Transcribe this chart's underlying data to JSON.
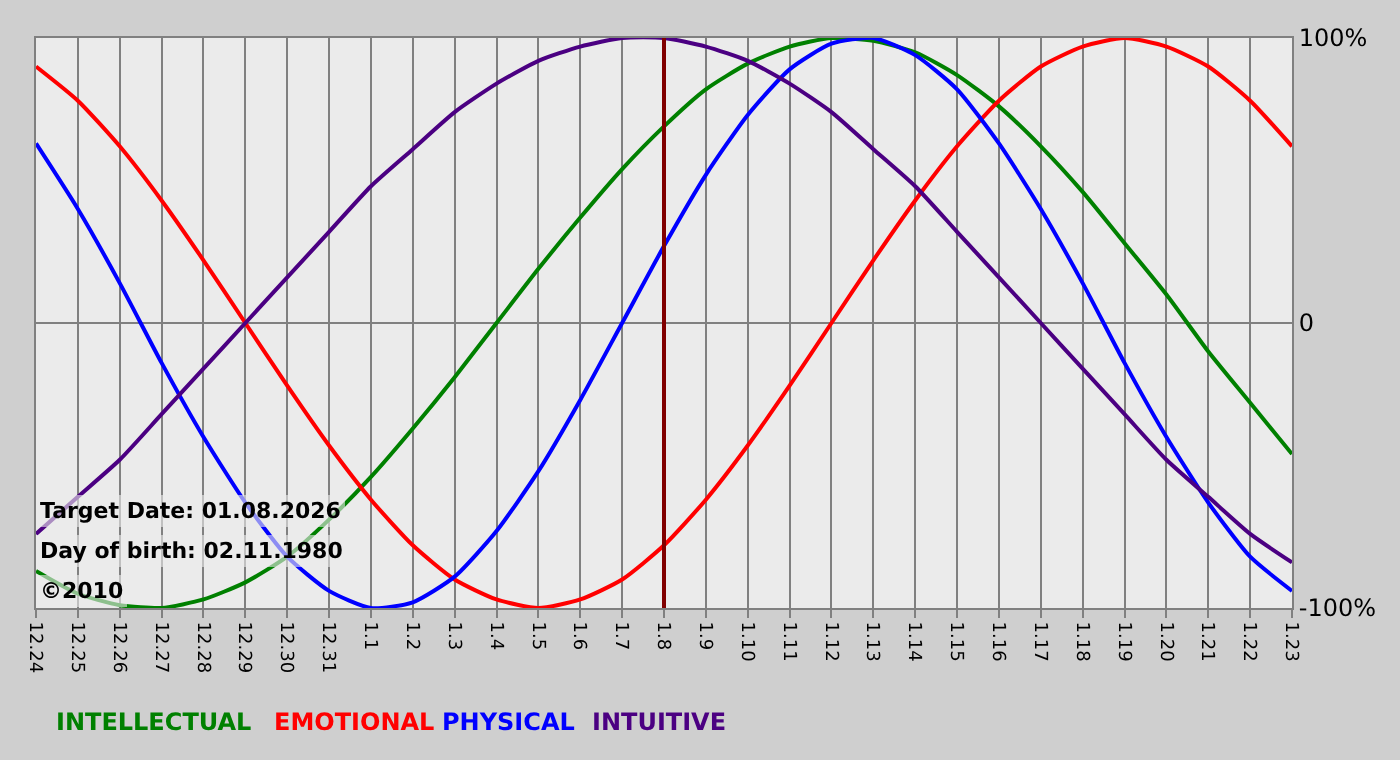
{
  "chart_data": {
    "type": "line",
    "categories": [
      "12.24",
      "12.25",
      "12.26",
      "12.27",
      "12.28",
      "12.29",
      "12.30",
      "12.31",
      "1.1",
      "1.2",
      "1.3",
      "1.4",
      "1.5",
      "1.6",
      "1.7",
      "1.8",
      "1.9",
      "1.10",
      "1.11",
      "1.12",
      "1.13",
      "1.14",
      "1.15",
      "1.16",
      "1.17",
      "1.18",
      "1.19",
      "1.20",
      "1.21",
      "1.22",
      "1.23"
    ],
    "series": [
      {
        "name": "INTELLECTUAL",
        "color": "#008000",
        "values": [
          -0.87,
          -0.95,
          -0.99,
          -1,
          -0.97,
          -0.91,
          -0.82,
          -0.69,
          -0.54,
          -0.37,
          -0.19,
          0,
          0.19,
          0.37,
          0.54,
          0.69,
          0.82,
          0.91,
          0.97,
          1,
          0.99,
          0.95,
          0.87,
          0.76,
          0.62,
          0.46,
          0.28,
          0.1,
          -0.1,
          -0.28,
          -0.46
        ]
      },
      {
        "name": "EMOTIONAL",
        "color": "#ff0000",
        "values": [
          0.9,
          0.78,
          0.62,
          0.43,
          0.22,
          0,
          -0.22,
          -0.43,
          -0.62,
          -0.78,
          -0.9,
          -0.97,
          -1,
          -0.97,
          -0.9,
          -0.78,
          -0.62,
          -0.43,
          -0.22,
          0,
          0.22,
          0.43,
          0.62,
          0.78,
          0.9,
          0.97,
          1,
          0.97,
          0.9,
          0.78,
          0.62
        ]
      },
      {
        "name": "PHYSICAL",
        "color": "#0000ff",
        "values": [
          0.63,
          0.4,
          0.14,
          -0.14,
          -0.4,
          -0.63,
          -0.82,
          -0.94,
          -1,
          -0.98,
          -0.89,
          -0.73,
          -0.52,
          -0.27,
          0,
          0.27,
          0.52,
          0.73,
          0.89,
          0.98,
          1,
          0.94,
          0.82,
          0.63,
          0.4,
          0.14,
          -0.14,
          -0.4,
          -0.63,
          -0.82,
          -0.94
        ]
      },
      {
        "name": "INTUITIVE",
        "color": "#4b0082",
        "values": [
          -0.74,
          -0.61,
          -0.48,
          -0.32,
          -0.16,
          0,
          0.16,
          0.32,
          0.48,
          0.61,
          0.74,
          0.84,
          0.92,
          0.97,
          1,
          1,
          0.97,
          0.92,
          0.84,
          0.74,
          0.61,
          0.48,
          0.32,
          0.16,
          0,
          -0.16,
          -0.32,
          -0.48,
          -0.61,
          -0.74,
          -0.84
        ]
      }
    ],
    "ylim": [
      -1,
      1
    ],
    "yticks": [
      {
        "value": -1,
        "label": "-100%"
      },
      0,
      {
        "value": 1,
        "label": "100%"
      }
    ],
    "grid": true,
    "legend": "bottom",
    "marker": "none",
    "line_style": "solid",
    "ref_lines": [
      {
        "axis": "x",
        "value": "1.8",
        "color": "#800000"
      }
    ],
    "annotations": [
      "Target Date: 01.08.2026",
      "Day of birth: 02.11.1980",
      "©2010"
    ]
  }
}
